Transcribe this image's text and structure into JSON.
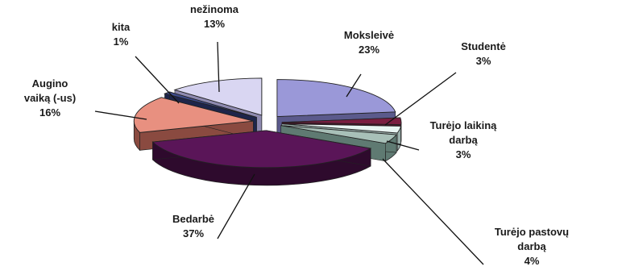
{
  "chart_data": {
    "type": "pie",
    "style": "3d-exploded",
    "legend": "none",
    "slices": [
      {
        "name": "Moksleivė",
        "value": 23,
        "label_pct": "23%",
        "color": "#9a98d8",
        "side": "#5b5a8c"
      },
      {
        "name": "Studentė",
        "value": 3,
        "label_pct": "3%",
        "color": "#7a1d40",
        "side": "#4a1027"
      },
      {
        "name": "Turėjo laikiną darbą",
        "value": 3,
        "label_pct": "3%",
        "color": "#e8f4f2",
        "side": "#9bb0ac"
      },
      {
        "name": "Turėjo pastovų darbą",
        "value": 4,
        "label_pct": "4%",
        "color": "#a8c0b8",
        "side": "#5f7a72"
      },
      {
        "name": "Bedarbė",
        "value": 37,
        "label_pct": "37%",
        "color": "#5a1558",
        "side": "#2e0a2d"
      },
      {
        "name": "Augino vaiką (-us)",
        "value": 16,
        "label_pct": "16%",
        "color": "#e89080",
        "side": "#8a4a40"
      },
      {
        "name": "kita",
        "value": 1,
        "label_pct": "1%",
        "color": "#3d4a8a",
        "side": "#1e254a"
      },
      {
        "name": "nežinoma",
        "value": 13,
        "label_pct": "13%",
        "color": "#d9d6f2",
        "side": "#8e8ab0"
      }
    ]
  }
}
